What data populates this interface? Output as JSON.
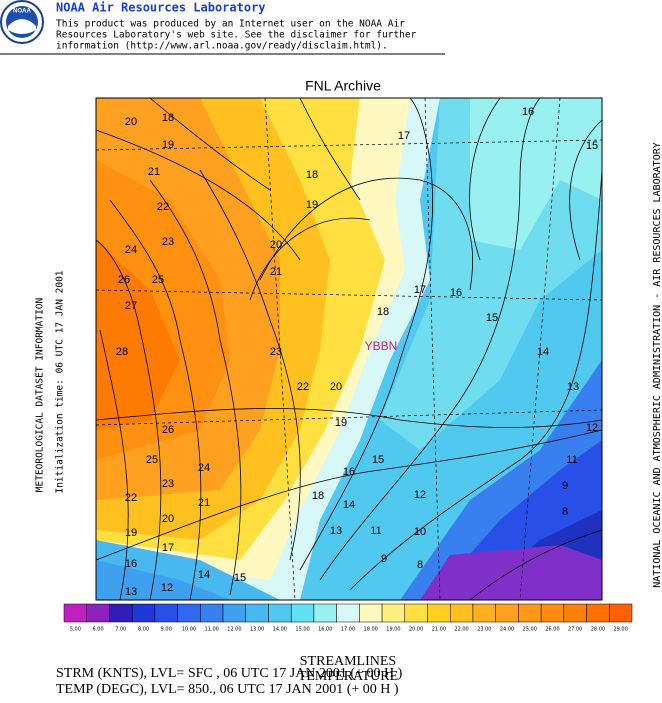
{
  "header": {
    "title": "NOAA Air Resources Laboratory",
    "disclaimer": [
      "This product was produced by an Internet user on the NOAA Air",
      "Resources Laboratory's web site.  See the disclaimer for further",
      "information (http://www.arl.noaa.gov/ready/disclaim.html)."
    ],
    "logo": "NOAA"
  },
  "map": {
    "title": "FNL Archive",
    "station": "YBBN",
    "contour_labels": [
      "20",
      "18",
      "17",
      "16",
      "15",
      "19",
      "21",
      "18",
      "19",
      "22",
      "23",
      "20",
      "24",
      "21",
      "26",
      "25",
      "17",
      "16",
      "27",
      "18",
      "15",
      "28",
      "23",
      "14",
      "22",
      "20",
      "13",
      "19",
      "26",
      "12",
      "25",
      "16",
      "15",
      "11",
      "24",
      "23",
      "22",
      "21",
      "18",
      "14",
      "12",
      "9",
      "20",
      "8",
      "19",
      "13",
      "11",
      "10",
      "17",
      "9",
      "8",
      "16",
      "12",
      "14",
      "15",
      "13"
    ]
  },
  "colorbar": [
    {
      "label": "5.00",
      "color": "#c020c0"
    },
    {
      "label": "6.00",
      "color": "#9020c0"
    },
    {
      "label": "7.00",
      "color": "#3020b8"
    },
    {
      "label": "8.00",
      "color": "#2038d8"
    },
    {
      "label": "9.00",
      "color": "#2850e8"
    },
    {
      "label": "10.00",
      "color": "#3068f0"
    },
    {
      "label": "11.00",
      "color": "#3880f0"
    },
    {
      "label": "12.00",
      "color": "#40a0f0"
    },
    {
      "label": "13.00",
      "color": "#48b8f0"
    },
    {
      "label": "14.00",
      "color": "#50c8f0"
    },
    {
      "label": "15.00",
      "color": "#60e0f0"
    },
    {
      "label": "16.00",
      "color": "#98f0f0"
    },
    {
      "label": "17.00",
      "color": "#d8f8f8"
    },
    {
      "label": "18.00",
      "color": "#fff8c0"
    },
    {
      "label": "19.00",
      "color": "#fff080"
    },
    {
      "label": "20.00",
      "color": "#ffe040"
    },
    {
      "label": "21.00",
      "color": "#ffd020"
    },
    {
      "label": "22.00",
      "color": "#ffc020"
    },
    {
      "label": "23.00",
      "color": "#ffb020"
    },
    {
      "label": "24.00",
      "color": "#ffa020"
    },
    {
      "label": "25.00",
      "color": "#ff9818"
    },
    {
      "label": "26.00",
      "color": "#ff8c10"
    },
    {
      "label": "27.00",
      "color": "#ff8008"
    },
    {
      "label": "28.00",
      "color": "#ff7000"
    },
    {
      "label": "29.00",
      "color": "#ff6000"
    }
  ],
  "footer": {
    "line1": "STREAMLINES",
    "line2": "TEMPERATURE",
    "line3": "STRM (KNTS),  LVL= SFC , 06 UTC 17 JAN 2001 (+ 00 H )",
    "line4": "TEMP (DEGC),  LVL= 850., 06 UTC 17 JAN 2001 (+ 00 H )"
  },
  "side": {
    "left1": "METEOROLOGICAL DATASET INFORMATION",
    "left2": "Initialization time: 06 UTC 17 JAN 2001",
    "right": "NATIONAL OCEANIC AND ATMOSPHERIC ADMINISTRATION  -  AIR RESOURCES LABORATORY"
  }
}
